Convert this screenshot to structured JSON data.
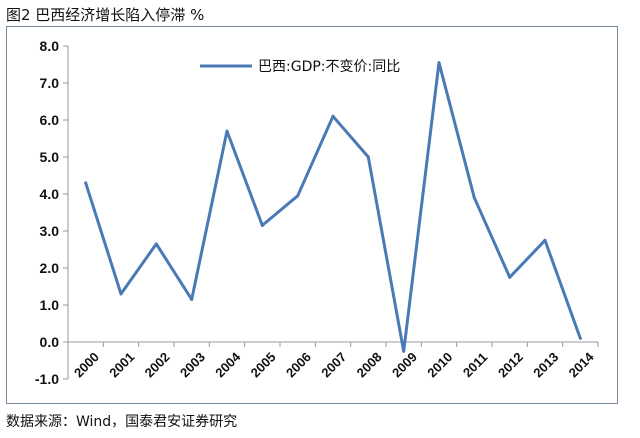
{
  "figure": {
    "title": "图2 巴西经济增长陷入停滞 %",
    "source": "数据来源：Wind，国泰君安证券研究"
  },
  "chart_data": {
    "type": "line",
    "title": "",
    "xlabel": "",
    "ylabel": "",
    "categories": [
      "2000",
      "2001",
      "2002",
      "2003",
      "2004",
      "2005",
      "2006",
      "2007",
      "2008",
      "2009",
      "2010",
      "2011",
      "2012",
      "2013",
      "2014"
    ],
    "series": [
      {
        "name": "巴西:GDP:不变价:同比",
        "color": "#4a7ab5",
        "values": [
          4.3,
          1.3,
          2.65,
          1.15,
          5.7,
          3.15,
          3.95,
          6.1,
          5.0,
          -0.25,
          7.55,
          3.9,
          1.75,
          2.75,
          0.1
        ]
      }
    ],
    "ylim": [
      -1.0,
      8.0
    ],
    "yticks": [
      "8.0",
      "7.0",
      "6.0",
      "5.0",
      "4.0",
      "3.0",
      "2.0",
      "1.0",
      "0.0",
      "-1.0"
    ],
    "grid": false,
    "legend_position": "top"
  }
}
